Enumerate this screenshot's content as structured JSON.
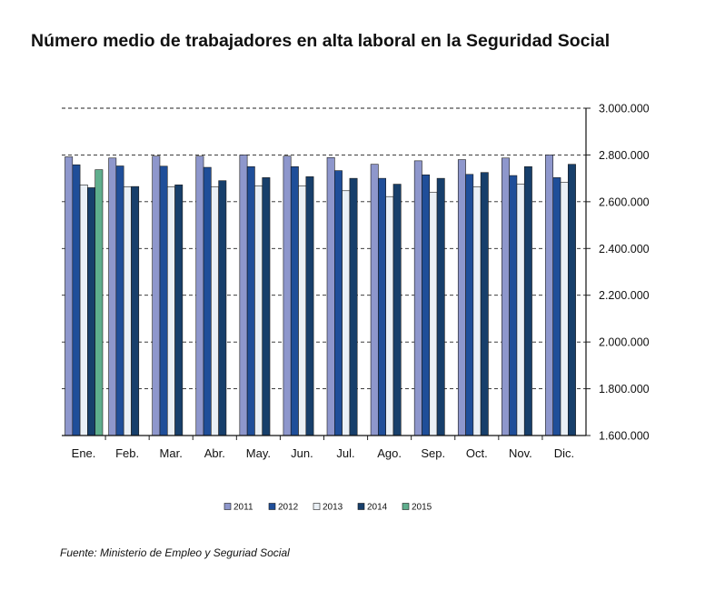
{
  "chart_data": {
    "type": "bar",
    "title": "Número medio de trabajadores en alta laboral en la Seguridad Social",
    "source": "Fuente: Ministerio de Empleo y Seguriad Social",
    "categories": [
      "Ene.",
      "Feb.",
      "Mar.",
      "Abr.",
      "May.",
      "Jun.",
      "Jul.",
      "Ago.",
      "Sep.",
      "Oct.",
      "Nov.",
      "Dic."
    ],
    "ylim": [
      1600000,
      3000000
    ],
    "yticks": [
      1600000,
      1800000,
      2000000,
      2200000,
      2400000,
      2600000,
      2800000,
      3000000
    ],
    "ytick_labels": [
      "1.600.000",
      "1.800.000",
      "2.000.000",
      "2.200.000",
      "2.400.000",
      "2.600.000",
      "2.800.000",
      "3.000.000"
    ],
    "y_axis_position": "right",
    "grid": "dashed horizontal",
    "legend_position": "bottom",
    "series": [
      {
        "name": "2011",
        "color": "#8e97cc",
        "values": [
          2792000,
          2787000,
          2795000,
          2795000,
          2800000,
          2795000,
          2789000,
          2760000,
          2775000,
          2780000,
          2787000,
          2800000
        ]
      },
      {
        "name": "2012",
        "color": "#1f4e99",
        "values": [
          2758000,
          2753000,
          2752000,
          2747000,
          2750000,
          2750000,
          2733000,
          2700000,
          2715000,
          2717000,
          2712000,
          2703000
        ]
      },
      {
        "name": "2013",
        "color": "#eaf0f6",
        "values": [
          2672000,
          2664000,
          2663000,
          2663000,
          2668000,
          2668000,
          2647000,
          2622000,
          2640000,
          2663000,
          2675000,
          2683000
        ]
      },
      {
        "name": "2014",
        "color": "#173f6b",
        "values": [
          2660000,
          2665000,
          2672000,
          2690000,
          2703000,
          2707000,
          2700000,
          2675000,
          2700000,
          2725000,
          2750000,
          2760000
        ]
      },
      {
        "name": "2015",
        "color": "#5fae8d",
        "values": [
          2737000,
          null,
          null,
          null,
          null,
          null,
          null,
          null,
          null,
          null,
          null,
          null
        ]
      }
    ]
  }
}
